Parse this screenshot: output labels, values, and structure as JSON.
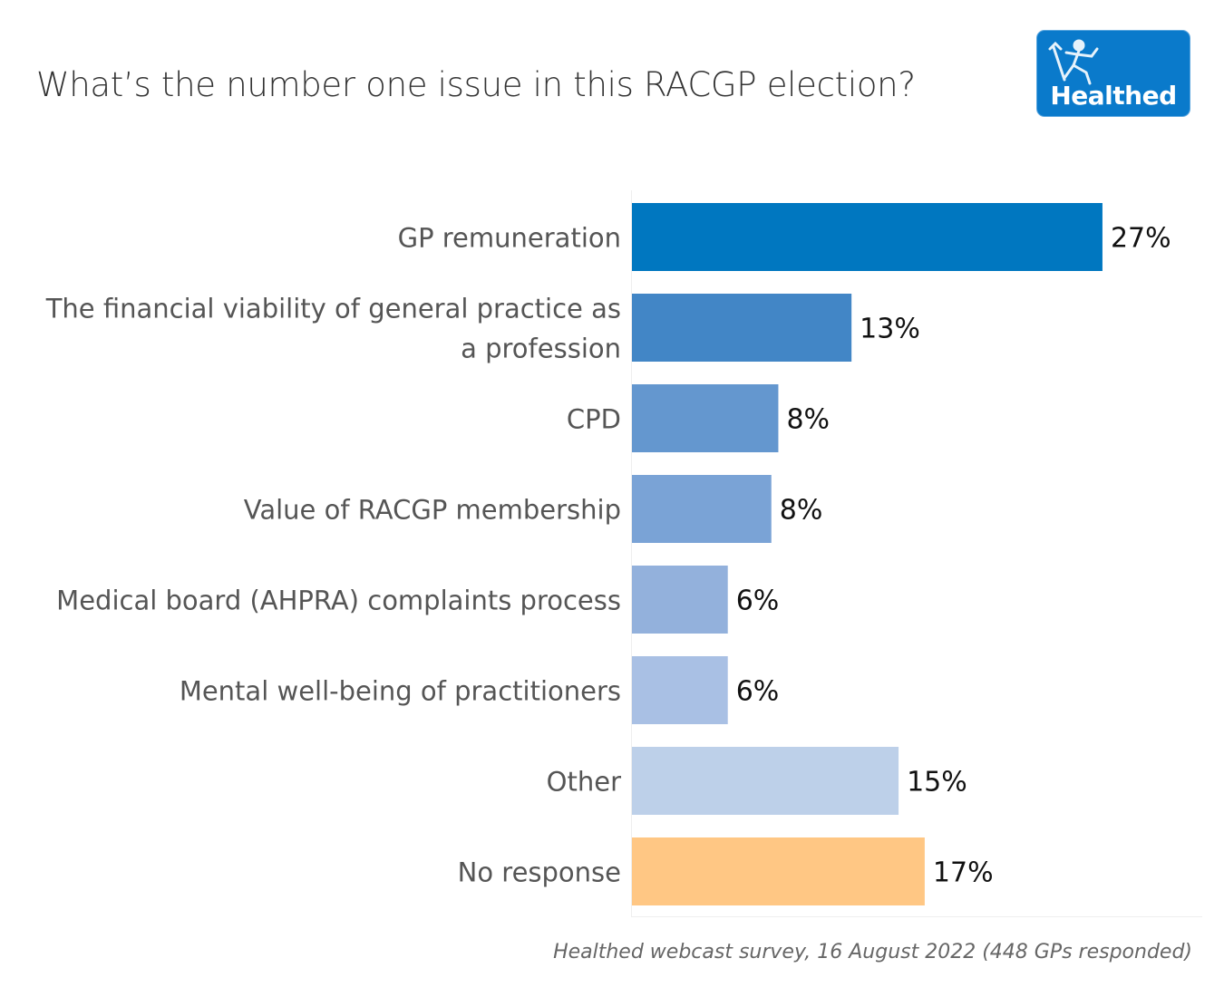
{
  "title": "What’s the number one issue in this RACGP election?",
  "logo": {
    "text": "Healthed",
    "icon": "running-figure-icon",
    "color": "#0a7acb"
  },
  "footer": "Healthed webcast survey, 16 August 2022 (448 GPs responded)",
  "chart_data": {
    "type": "bar",
    "orientation": "horizontal",
    "title": "What’s the number one issue in this RACGP election?",
    "xlabel": "",
    "ylabel": "",
    "xlim": [
      0,
      32
    ],
    "grid": false,
    "categories": [
      [
        "GP remuneration"
      ],
      [
        "The financial viability of general practice as",
        "a profession"
      ],
      [
        "CPD"
      ],
      [
        "Value of RACGP membership"
      ],
      [
        "Medical board (AHPRA) complaints process"
      ],
      [
        "Mental well-being of practitioners"
      ],
      [
        "Other"
      ],
      [
        "No response"
      ]
    ],
    "values": [
      27.0,
      12.6,
      8.4,
      8.0,
      5.5,
      5.5,
      15.3,
      16.8
    ],
    "labels": [
      "27%",
      "13%",
      "8%",
      "8%",
      "6%",
      "6%",
      "15%",
      "17%"
    ],
    "colors": [
      "#0077c0",
      "#4286c6",
      "#6497cf",
      "#7aa3d6",
      "#93b1dc",
      "#a9c0e4",
      "#bdd0e9",
      "#ffc784"
    ],
    "source": "Healthed webcast survey, 16 August 2022 (448 GPs responded)"
  }
}
